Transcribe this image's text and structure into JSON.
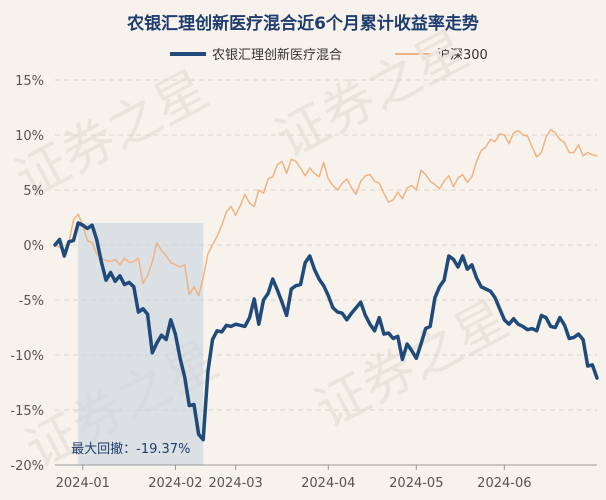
{
  "chart_data": {
    "type": "line",
    "title": "农银汇理创新医疗混合近6个月累计收益率走势",
    "xlabel": "",
    "ylabel": "",
    "ylim": [
      -20,
      15
    ],
    "y_ticks": [
      "15%",
      "10%",
      "5%",
      "0%",
      "-5%",
      "-10%",
      "-15%",
      "-20%"
    ],
    "y_tick_values": [
      15,
      10,
      5,
      0,
      -5,
      -10,
      -15,
      -20
    ],
    "x_tick_labels": [
      "2024-01",
      "2024-02",
      "2024-03",
      "2024-04",
      "2024-05",
      "2024-06"
    ],
    "x_tick_index": [
      6,
      26,
      39,
      59,
      78,
      97
    ],
    "series": [
      {
        "name": "农银汇理创新医疗混合",
        "color": "#1f4a7a",
        "values": [
          0,
          0.5,
          -1,
          0.3,
          0.4,
          2,
          1.8,
          1.5,
          1.8,
          0.5,
          -1.5,
          -3.2,
          -2.5,
          -3.3,
          -2.8,
          -3.6,
          -3.4,
          -3.8,
          -6.1,
          -5.8,
          -6.3,
          -9.8,
          -8.9,
          -8.2,
          -8.6,
          -6.8,
          -8.1,
          -10.3,
          -12.0,
          -14.6,
          -14.5,
          -17.2,
          -17.7,
          -11.5,
          -8.6,
          -7.8,
          -7.9,
          -7.3,
          -7.4,
          -7.2,
          -7.3,
          -7.4,
          -6.6,
          -4.9,
          -7.2,
          -5.0,
          -4.4,
          -3.1,
          -4.1,
          -5.2,
          -6.4,
          -4.0,
          -3.7,
          -3.6,
          -1.6,
          -1.0,
          -2.2,
          -3.1,
          -3.7,
          -4.6,
          -5.7,
          -6.1,
          -6.2,
          -6.8,
          -6.2,
          -5.7,
          -5.2,
          -6.4,
          -7.2,
          -7.8,
          -6.6,
          -8.1,
          -8.0,
          -8.5,
          -8.3,
          -10.4,
          -9.0,
          -9.6,
          -10.3,
          -9.0,
          -7.6,
          -7.4,
          -4.8,
          -3.8,
          -3.2,
          -1.0,
          -1.3,
          -2.0,
          -1.0,
          -2.2,
          -1.8,
          -3.0,
          -3.8,
          -4.0,
          -4.2,
          -4.8,
          -5.8,
          -6.8,
          -7.2,
          -6.7,
          -7.2,
          -7.4,
          -7.7,
          -7.6,
          -7.8,
          -6.4,
          -6.6,
          -7.4,
          -7.5,
          -6.6,
          -7.3,
          -8.5,
          -8.4,
          -8.1,
          -8.6,
          -11.0,
          -10.9,
          -12.1
        ]
      },
      {
        "name": "沪深300",
        "color": "#f0b283",
        "values": [
          0,
          -0.2,
          -0.6,
          0.2,
          2.3,
          2.8,
          1.8,
          0.4,
          0.2,
          -0.8,
          -1.2,
          -1.4,
          -1.5,
          -1.3,
          -1.8,
          -1.2,
          -1.6,
          -1.5,
          -1.2,
          -3.5,
          -2.8,
          -1.5,
          0.2,
          -0.5,
          -1.0,
          -1.6,
          -1.8,
          -2.0,
          -1.8,
          -4.5,
          -3.8,
          -4.6,
          -3.0,
          -0.8,
          0,
          0.8,
          1.8,
          3.0,
          3.5,
          2.7,
          3.6,
          4.6,
          3.8,
          3.5,
          5.0,
          4.7,
          6.0,
          6.2,
          7.3,
          7.6,
          6.5,
          7.8,
          7.6,
          7.0,
          6.3,
          7.0,
          6.5,
          6.2,
          7.5,
          6.0,
          5.4,
          5.0,
          5.6,
          6.0,
          5.2,
          4.6,
          5.8,
          6.3,
          6.4,
          5.8,
          5.6,
          4.7,
          3.9,
          4.1,
          4.8,
          4.2,
          5.2,
          5.4,
          5.0,
          6.8,
          6.4,
          5.8,
          5.5,
          5.1,
          5.8,
          6.3,
          5.3,
          6.1,
          6.4,
          5.7,
          6.2,
          7.6,
          8.6,
          8.9,
          9.6,
          9.4,
          10.1,
          10.0,
          9.2,
          10.2,
          10.4,
          10.0,
          9.9,
          8.9,
          8.0,
          8.4,
          9.8,
          10.5,
          10.2,
          9.6,
          9.3,
          8.4,
          8.4,
          9.1,
          8.1,
          8.4,
          8.2,
          8.1
        ]
      }
    ],
    "drawdown": {
      "label": "最大回撤：-19.37%",
      "start_index": 5,
      "end_index": 32
    },
    "watermark": "证券之星"
  }
}
